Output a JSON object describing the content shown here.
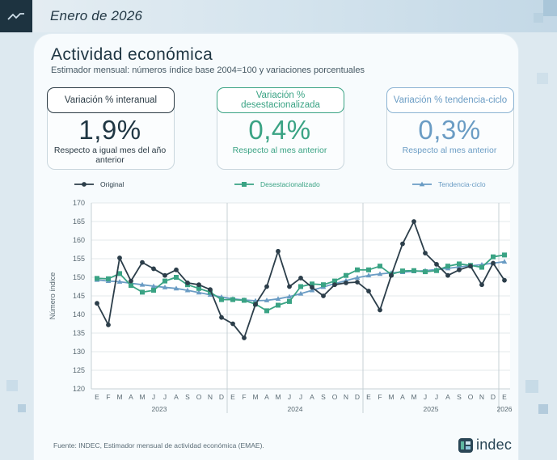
{
  "header": {
    "date_title": "Enero de 2026"
  },
  "title": "Actividad económica",
  "subtitle": "Estimador mensual: números índice base 2004=100 y variaciones porcentuales",
  "kpis": [
    {
      "label": "Variación % interanual",
      "value": "1,9%",
      "note": "Respecto a igual mes del año anterior",
      "color": "#2b3b45"
    },
    {
      "label": "Variación % desestacionalizada",
      "value": "0,4%",
      "note": "Respecto al mes anterior",
      "color": "#3aa384"
    },
    {
      "label": "Variación % tendencia-ciclo",
      "value": "0,3%",
      "note": "Respecto al mes anterior",
      "color": "#6a9cc4"
    }
  ],
  "source": "Fuente: INDEC, Estimador mensual de actividad económica (EMAE).",
  "logo": {
    "text": "indec",
    "icon": "indec-logo-icon"
  },
  "chart_data": {
    "type": "line",
    "categories": [
      "E",
      "F",
      "M",
      "A",
      "M",
      "J",
      "J",
      "A",
      "S",
      "O",
      "N",
      "D",
      "E",
      "F",
      "M",
      "A",
      "M",
      "J",
      "J",
      "A",
      "S",
      "O",
      "N",
      "D",
      "E",
      "F",
      "M",
      "A",
      "M",
      "J",
      "J",
      "A",
      "S",
      "O",
      "N",
      "D",
      "E"
    ],
    "year_labels": [
      "2023",
      "2024",
      "2025",
      "2026"
    ],
    "ylabel": "Número índice",
    "ylim": [
      120,
      170
    ],
    "yticks": [
      120,
      125,
      130,
      135,
      140,
      145,
      150,
      155,
      160,
      165,
      170
    ],
    "legend_position": "top",
    "series": [
      {
        "name": "Original",
        "color": "#2c3e4a",
        "marker": "circle",
        "values": [
          143.0,
          137.2,
          155.2,
          149.0,
          154.0,
          152.3,
          150.5,
          152.0,
          148.5,
          148.0,
          146.7,
          139.2,
          137.5,
          133.7,
          142.7,
          147.5,
          157.0,
          147.5,
          149.8,
          147.3,
          145.0,
          148.0,
          148.5,
          148.7,
          146.3,
          141.2,
          150.5,
          159.0,
          165.0,
          156.5,
          153.5,
          150.5,
          152.0,
          153.0,
          148.0,
          153.8,
          149.2
        ]
      },
      {
        "name": "Desestacionalizado",
        "color": "#3aa384",
        "marker": "square",
        "values": [
          149.7,
          149.6,
          151.0,
          147.8,
          146.0,
          146.5,
          149.0,
          150.0,
          148.0,
          147.0,
          146.0,
          144.0,
          144.0,
          143.8,
          142.8,
          141.0,
          142.5,
          143.5,
          147.5,
          148.2,
          148.0,
          149.0,
          150.5,
          152.0,
          152.0,
          153.0,
          150.8,
          151.7,
          151.8,
          151.5,
          151.8,
          153.0,
          153.6,
          153.2,
          152.7,
          155.5,
          156.0
        ]
      },
      {
        "name": "Tendencia-ciclo",
        "color": "#6a9cc4",
        "marker": "triangle",
        "values": [
          149.3,
          149.0,
          148.8,
          148.4,
          148.0,
          147.6,
          147.3,
          147.0,
          146.5,
          145.9,
          145.3,
          144.7,
          144.2,
          143.9,
          143.7,
          143.8,
          144.2,
          144.8,
          145.6,
          146.5,
          147.4,
          148.3,
          149.1,
          149.9,
          150.5,
          150.9,
          151.2,
          151.4,
          151.6,
          151.8,
          152.1,
          152.4,
          152.8,
          153.1,
          153.4,
          153.8,
          154.2
        ]
      }
    ]
  }
}
